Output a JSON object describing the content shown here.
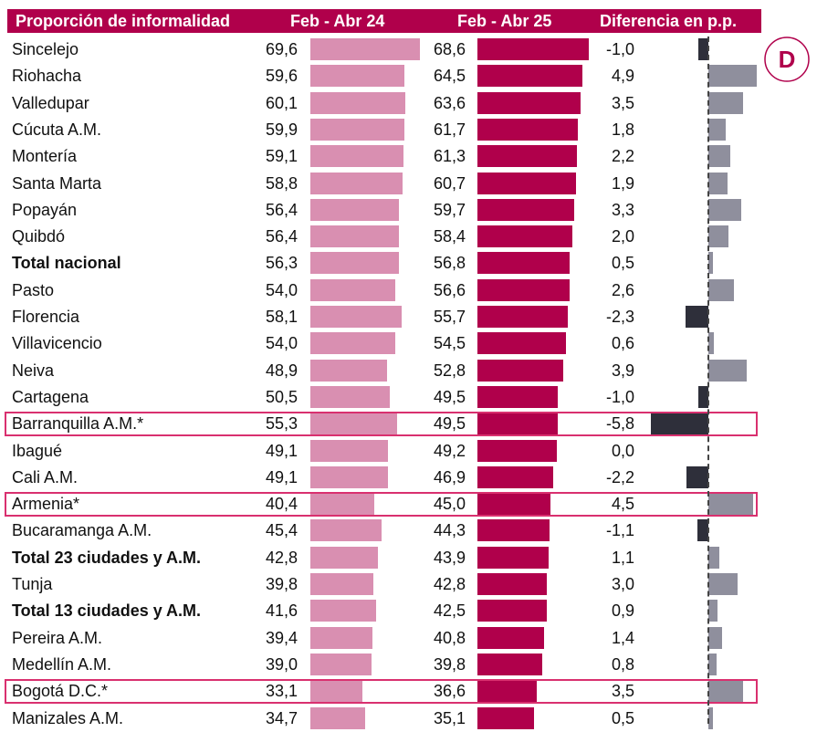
{
  "header": {
    "title": "Proporción de informalidad",
    "col_2024": "Feb - Abr 24",
    "col_2025": "Feb - Abr 25",
    "col_diff": "Diferencia en p.p."
  },
  "logo": {
    "letter": "D",
    "color": "#b0004b"
  },
  "colors": {
    "header": "#b0004b",
    "bar_2024": "#d98fb1",
    "bar_2025": "#b0004b",
    "diff_positive": "#8f8f9d",
    "diff_negative": "#2e2f3a",
    "highlight": "#d9306f"
  },
  "chart_data": {
    "type": "table",
    "title": "Proporción de informalidad",
    "series": [
      {
        "name": "Feb - Abr 24",
        "unit": "%"
      },
      {
        "name": "Feb - Abr 25",
        "unit": "%"
      },
      {
        "name": "Diferencia en p.p.",
        "unit": "p.p."
      }
    ],
    "rows": [
      {
        "name": "Sincelejo",
        "v24": 69.6,
        "v25": 68.6,
        "diff": -1.0,
        "l24": "69,6",
        "l25": "68,6",
        "ldiff": "-1,0",
        "bold": false,
        "highlight": false
      },
      {
        "name": "Riohacha",
        "v24": 59.6,
        "v25": 64.5,
        "diff": 4.9,
        "l24": "59,6",
        "l25": "64,5",
        "ldiff": "4,9",
        "bold": false,
        "highlight": false
      },
      {
        "name": "Valledupar",
        "v24": 60.1,
        "v25": 63.6,
        "diff": 3.5,
        "l24": "60,1",
        "l25": "63,6",
        "ldiff": "3,5",
        "bold": false,
        "highlight": false
      },
      {
        "name": "Cúcuta A.M.",
        "v24": 59.9,
        "v25": 61.7,
        "diff": 1.8,
        "l24": "59,9",
        "l25": "61,7",
        "ldiff": "1,8",
        "bold": false,
        "highlight": false
      },
      {
        "name": "Montería",
        "v24": 59.1,
        "v25": 61.3,
        "diff": 2.2,
        "l24": "59,1",
        "l25": "61,3",
        "ldiff": "2,2",
        "bold": false,
        "highlight": false
      },
      {
        "name": "Santa Marta",
        "v24": 58.8,
        "v25": 60.7,
        "diff": 1.9,
        "l24": "58,8",
        "l25": "60,7",
        "ldiff": "1,9",
        "bold": false,
        "highlight": false
      },
      {
        "name": "Popayán",
        "v24": 56.4,
        "v25": 59.7,
        "diff": 3.3,
        "l24": "56,4",
        "l25": "59,7",
        "ldiff": "3,3",
        "bold": false,
        "highlight": false
      },
      {
        "name": "Quibdó",
        "v24": 56.4,
        "v25": 58.4,
        "diff": 2.0,
        "l24": "56,4",
        "l25": "58,4",
        "ldiff": "2,0",
        "bold": false,
        "highlight": false
      },
      {
        "name": "Total nacional",
        "v24": 56.3,
        "v25": 56.8,
        "diff": 0.5,
        "l24": "56,3",
        "l25": "56,8",
        "ldiff": "0,5",
        "bold": true,
        "highlight": false
      },
      {
        "name": "Pasto",
        "v24": 54.0,
        "v25": 56.6,
        "diff": 2.6,
        "l24": "54,0",
        "l25": "56,6",
        "ldiff": "2,6",
        "bold": false,
        "highlight": false
      },
      {
        "name": "Florencia",
        "v24": 58.1,
        "v25": 55.7,
        "diff": -2.3,
        "l24": "58,1",
        "l25": "55,7",
        "ldiff": "-2,3",
        "bold": false,
        "highlight": false
      },
      {
        "name": "Villavicencio",
        "v24": 54.0,
        "v25": 54.5,
        "diff": 0.6,
        "l24": "54,0",
        "l25": "54,5",
        "ldiff": "0,6",
        "bold": false,
        "highlight": false
      },
      {
        "name": "Neiva",
        "v24": 48.9,
        "v25": 52.8,
        "diff": 3.9,
        "l24": "48,9",
        "l25": "52,8",
        "ldiff": "3,9",
        "bold": false,
        "highlight": false
      },
      {
        "name": "Cartagena",
        "v24": 50.5,
        "v25": 49.5,
        "diff": -1.0,
        "l24": "50,5",
        "l25": "49,5",
        "ldiff": "-1,0",
        "bold": false,
        "highlight": false
      },
      {
        "name": "Barranquilla A.M.*",
        "v24": 55.3,
        "v25": 49.5,
        "diff": -5.8,
        "l24": "55,3",
        "l25": "49,5",
        "ldiff": "-5,8",
        "bold": false,
        "highlight": true
      },
      {
        "name": "Ibagué",
        "v24": 49.1,
        "v25": 49.2,
        "diff": 0.0,
        "l24": "49,1",
        "l25": "49,2",
        "ldiff": "0,0",
        "bold": false,
        "highlight": false
      },
      {
        "name": "Cali A.M.",
        "v24": 49.1,
        "v25": 46.9,
        "diff": -2.2,
        "l24": "49,1",
        "l25": "46,9",
        "ldiff": "-2,2",
        "bold": false,
        "highlight": false
      },
      {
        "name": "Armenia*",
        "v24": 40.4,
        "v25": 45.0,
        "diff": 4.5,
        "l24": "40,4",
        "l25": "45,0",
        "ldiff": "4,5",
        "bold": false,
        "highlight": true
      },
      {
        "name": "Bucaramanga A.M.",
        "v24": 45.4,
        "v25": 44.3,
        "diff": -1.1,
        "l24": "45,4",
        "l25": "44,3",
        "ldiff": "-1,1",
        "bold": false,
        "highlight": false
      },
      {
        "name": "Total 23 ciudades y A.M.",
        "v24": 42.8,
        "v25": 43.9,
        "diff": 1.1,
        "l24": "42,8",
        "l25": "43,9",
        "ldiff": "1,1",
        "bold": true,
        "highlight": false
      },
      {
        "name": "Tunja",
        "v24": 39.8,
        "v25": 42.8,
        "diff": 3.0,
        "l24": "39,8",
        "l25": "42,8",
        "ldiff": "3,0",
        "bold": false,
        "highlight": false
      },
      {
        "name": "Total 13 ciudades y A.M.",
        "v24": 41.6,
        "v25": 42.5,
        "diff": 0.9,
        "l24": "41,6",
        "l25": "42,5",
        "ldiff": "0,9",
        "bold": true,
        "highlight": false
      },
      {
        "name": "Pereira A.M.",
        "v24": 39.4,
        "v25": 40.8,
        "diff": 1.4,
        "l24": "39,4",
        "l25": "40,8",
        "ldiff": "1,4",
        "bold": false,
        "highlight": false
      },
      {
        "name": "Medellín A.M.",
        "v24": 39.0,
        "v25": 39.8,
        "diff": 0.8,
        "l24": "39,0",
        "l25": "39,8",
        "ldiff": "0,8",
        "bold": false,
        "highlight": false
      },
      {
        "name": "Bogotá D.C.*",
        "v24": 33.1,
        "v25": 36.6,
        "diff": 3.5,
        "l24": "33,1",
        "l25": "36,6",
        "ldiff": "3,5",
        "bold": false,
        "highlight": true
      },
      {
        "name": "Manizales A.M.",
        "v24": 34.7,
        "v25": 35.1,
        "diff": 0.5,
        "l24": "34,7",
        "l25": "35,1",
        "ldiff": "0,5",
        "bold": false,
        "highlight": false
      }
    ]
  }
}
